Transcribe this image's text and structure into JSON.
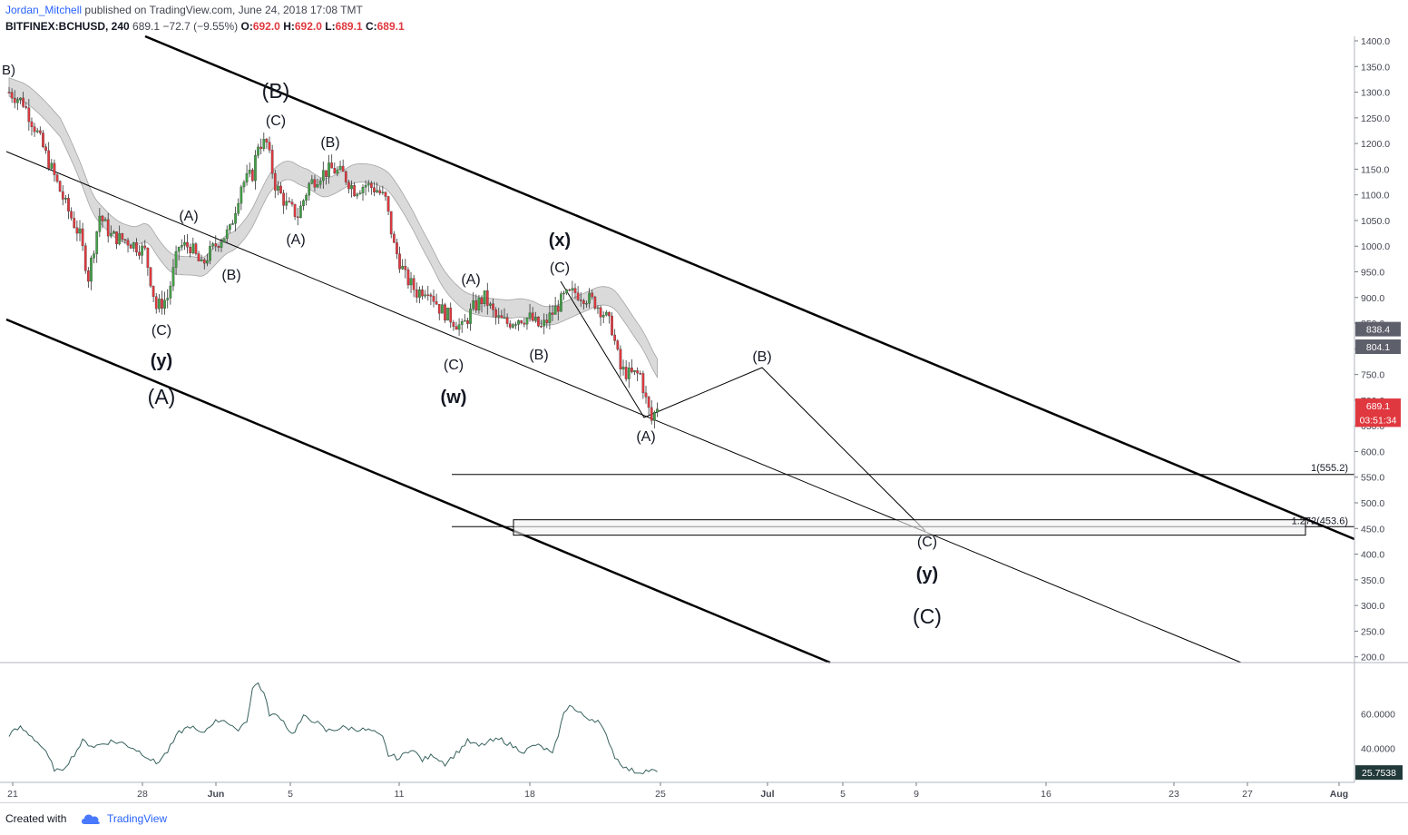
{
  "header": {
    "author": "Jordan_Mitchell",
    "published": "published on TradingView.com, June 24, 2018 17:08 TMT",
    "symbol": "BITFINEX:BCHUSD, 240",
    "last": "689.1",
    "change": "−72.7 (−9.55%)",
    "o_label": "O:",
    "o_val": "692.0",
    "h_label": "H:",
    "h_val": "692.0",
    "l_label": "L:",
    "l_val": "689.1",
    "c_label": "C:",
    "c_val": "689.1"
  },
  "footer": {
    "created": "Created with",
    "brand": "TradingView"
  },
  "colors": {
    "up": "#43a047",
    "down": "#e0383f",
    "osc": "#37625e",
    "band": "#d6d6d6",
    "accent": "#2962ff"
  },
  "chart_data": [
    {
      "type": "candlestick",
      "title": "BITFINEX:BCHUSD, 240",
      "ylim": [
        180,
        1400
      ],
      "y_ticks": [
        "200.0",
        "250.0",
        "300.0",
        "350.0",
        "400.0",
        "450.0",
        "500.0",
        "550.0",
        "600.0",
        "650.0",
        "700.0",
        "750.0",
        "800.0",
        "850.0",
        "900.0",
        "950.0",
        "1000.0",
        "1050.0",
        "1100.0",
        "1150.0",
        "1200.0",
        "1250.0",
        "1300.0",
        "1350.0",
        "1400.0"
      ],
      "x_ticks": [
        "21",
        "28",
        "Jun",
        "5",
        "11",
        "18",
        "25",
        "Jul",
        "5",
        "9",
        "16",
        "23",
        "27",
        "Aug"
      ],
      "price_waypoints": [
        [
          0,
          1300
        ],
        [
          5,
          1280
        ],
        [
          10,
          1220
        ],
        [
          15,
          1150
        ],
        [
          20,
          1080
        ],
        [
          25,
          1020
        ],
        [
          28,
          940
        ],
        [
          32,
          1060
        ],
        [
          36,
          1020
        ],
        [
          42,
          1010
        ],
        [
          48,
          990
        ],
        [
          52,
          880
        ],
        [
          56,
          900
        ],
        [
          60,
          1000
        ],
        [
          64,
          1000
        ],
        [
          68,
          960
        ],
        [
          70,
          980
        ],
        [
          74,
          1010
        ],
        [
          78,
          1030
        ],
        [
          82,
          1120
        ],
        [
          86,
          1140
        ],
        [
          88,
          1200
        ],
        [
          91,
          1200
        ],
        [
          94,
          1120
        ],
        [
          98,
          1080
        ],
        [
          102,
          1060
        ],
        [
          106,
          1120
        ],
        [
          110,
          1140
        ],
        [
          114,
          1150
        ],
        [
          118,
          1140
        ],
        [
          122,
          1110
        ],
        [
          126,
          1120
        ],
        [
          130,
          1110
        ],
        [
          133,
          1090
        ],
        [
          136,
          1000
        ],
        [
          140,
          940
        ],
        [
          144,
          910
        ],
        [
          148,
          920
        ],
        [
          152,
          880
        ],
        [
          156,
          860
        ],
        [
          160,
          840
        ],
        [
          164,
          880
        ],
        [
          168,
          900
        ],
        [
          172,
          860
        ],
        [
          176,
          850
        ],
        [
          180,
          860
        ],
        [
          184,
          860
        ],
        [
          188,
          840
        ],
        [
          192,
          870
        ],
        [
          196,
          900
        ],
        [
          200,
          910
        ],
        [
          204,
          900
        ],
        [
          207,
          890
        ],
        [
          210,
          870
        ],
        [
          213,
          840
        ],
        [
          216,
          760
        ],
        [
          219,
          750
        ],
        [
          223,
          750
        ],
        [
          225,
          700
        ],
        [
          227,
          660
        ],
        [
          229,
          689
        ]
      ],
      "price_labels": [
        {
          "value": "838.4",
          "price": 838.4
        },
        {
          "value": "804.1",
          "price": 804.1
        },
        {
          "value": "689.1",
          "price": 689.1,
          "color": "#e0383f"
        },
        {
          "value": "03:51:34",
          "price": 662,
          "color": "#e0383f"
        }
      ],
      "fib_levels": [
        {
          "label": "1(555.2)",
          "price": 555.2
        },
        {
          "label": "1.272(453.6)",
          "price": 453.6
        }
      ],
      "target_zone": [
        437,
        467
      ],
      "wave_labels": [
        "B)",
        "(B)",
        "(C)",
        "(B)",
        "(A)",
        "(A)",
        "(B)",
        "(C)",
        "(y)",
        "(A)",
        "(x)",
        "(C)",
        "(A)",
        "(B)",
        "(C)",
        "(w)",
        "(A)",
        "(B)",
        "(C)",
        "(y)",
        "(C)"
      ]
    },
    {
      "type": "line",
      "title": "",
      "ylim": [
        20,
        90
      ],
      "y_ticks": [
        "40.0000",
        "60.0000"
      ],
      "last_value": "25.7538",
      "values_waypoints": [
        [
          0,
          48
        ],
        [
          4,
          52
        ],
        [
          8,
          47
        ],
        [
          12,
          40
        ],
        [
          16,
          28
        ],
        [
          18,
          26
        ],
        [
          22,
          34
        ],
        [
          26,
          44
        ],
        [
          30,
          41
        ],
        [
          36,
          44
        ],
        [
          40,
          43
        ],
        [
          44,
          40
        ],
        [
          48,
          36
        ],
        [
          52,
          31
        ],
        [
          56,
          38
        ],
        [
          60,
          49
        ],
        [
          64,
          53
        ],
        [
          68,
          48
        ],
        [
          72,
          55
        ],
        [
          76,
          57
        ],
        [
          80,
          50
        ],
        [
          84,
          56
        ],
        [
          86,
          75
        ],
        [
          88,
          78
        ],
        [
          90,
          72
        ],
        [
          92,
          60
        ],
        [
          96,
          58
        ],
        [
          100,
          48
        ],
        [
          104,
          58
        ],
        [
          108,
          56
        ],
        [
          112,
          50
        ],
        [
          118,
          52
        ],
        [
          124,
          51
        ],
        [
          128,
          50
        ],
        [
          132,
          46
        ],
        [
          134,
          36
        ],
        [
          138,
          34
        ],
        [
          142,
          40
        ],
        [
          146,
          33
        ],
        [
          150,
          36
        ],
        [
          154,
          31
        ],
        [
          158,
          37
        ],
        [
          162,
          44
        ],
        [
          166,
          41
        ],
        [
          170,
          44
        ],
        [
          174,
          45
        ],
        [
          178,
          41
        ],
        [
          182,
          38
        ],
        [
          186,
          42
        ],
        [
          190,
          39
        ],
        [
          192,
          36
        ],
        [
          196,
          60
        ],
        [
          198,
          66
        ],
        [
          200,
          62
        ],
        [
          204,
          58
        ],
        [
          208,
          56
        ],
        [
          212,
          44
        ],
        [
          214,
          35
        ],
        [
          218,
          28
        ],
        [
          222,
          26
        ],
        [
          226,
          27
        ],
        [
          229,
          26
        ]
      ]
    }
  ]
}
